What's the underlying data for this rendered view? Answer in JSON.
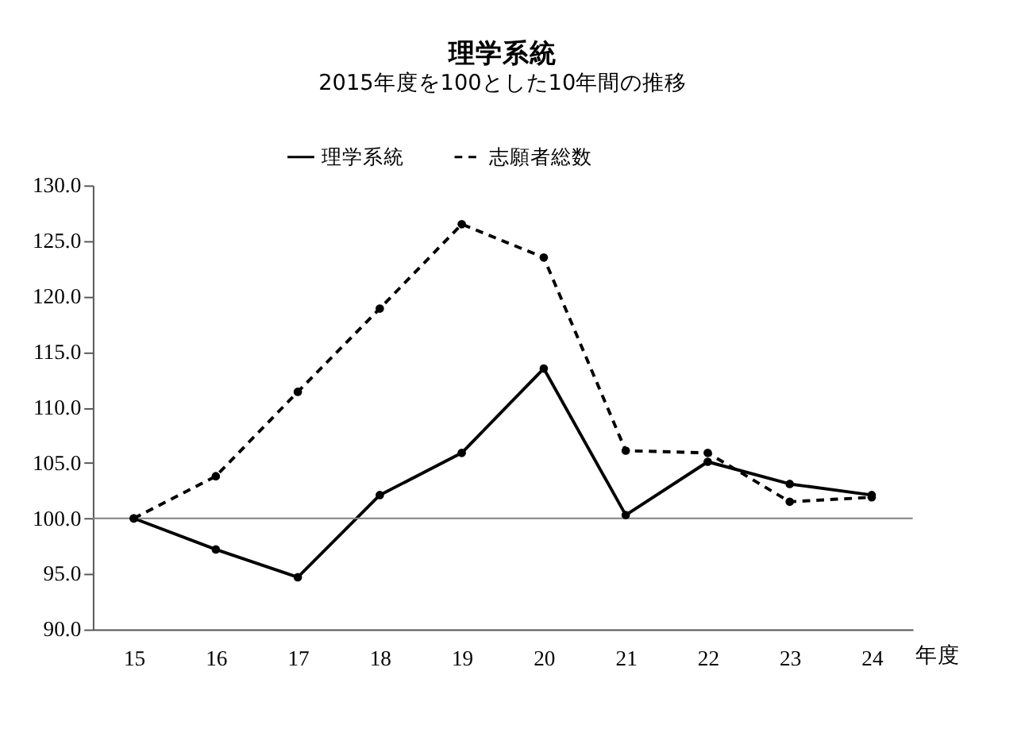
{
  "chart_data": {
    "type": "line",
    "title": "理学系統",
    "subtitle": "2015年度を100とした10年間の推移",
    "xlabel": "年度",
    "categories": [
      "15",
      "16",
      "17",
      "18",
      "19",
      "20",
      "21",
      "22",
      "23",
      "24"
    ],
    "series": [
      {
        "name": "理学系統",
        "color": "#000000",
        "line_style": "solid",
        "values": [
          100.0,
          97.2,
          94.7,
          102.1,
          105.9,
          113.5,
          100.3,
          105.1,
          103.1,
          102.1
        ]
      },
      {
        "name": "志願者総数",
        "color": "#000000",
        "line_style": "dashed",
        "values": [
          100.0,
          103.8,
          111.4,
          118.9,
          126.5,
          123.5,
          106.1,
          105.9,
          101.5,
          101.9
        ]
      }
    ],
    "ylim": [
      90,
      130
    ],
    "yticks": [
      {
        "value": 90,
        "label": "90.0"
      },
      {
        "value": 95,
        "label": "95.0"
      },
      {
        "value": 100,
        "label": "100.0"
      },
      {
        "value": 105,
        "label": "105.0"
      },
      {
        "value": 110,
        "label": "110.0"
      },
      {
        "value": 115,
        "label": "115.0"
      },
      {
        "value": 120,
        "label": "120.0"
      },
      {
        "value": 125,
        "label": "125.0"
      },
      {
        "value": 130,
        "label": "130.0"
      }
    ],
    "ref_lines": [
      {
        "axis": "y",
        "value": 100,
        "color": "#808080"
      }
    ],
    "marker": "circle",
    "grid": false,
    "legend": "top"
  }
}
